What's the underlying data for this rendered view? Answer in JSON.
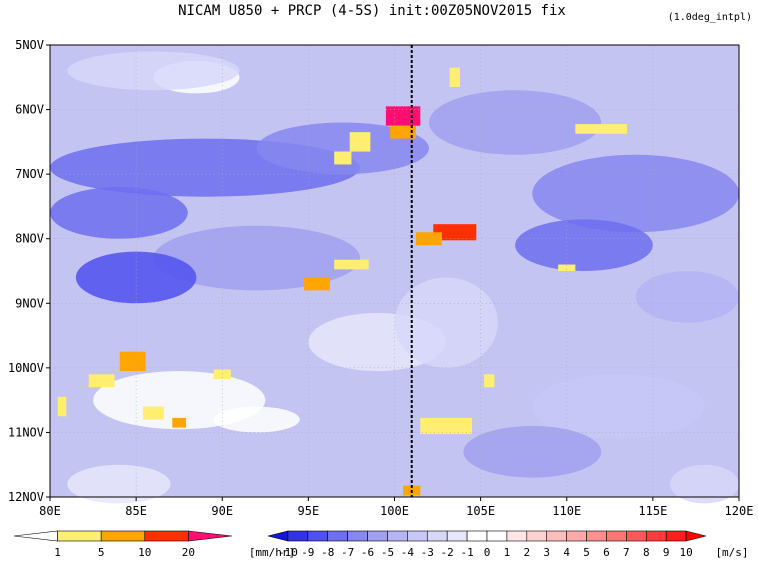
{
  "title": "NICAM  U850 + PRCP (4-5S) init:00Z05NOV2015 fix",
  "note": "(1.0deg_intpl)",
  "chart_data": {
    "type": "heatmap",
    "title": "NICAM  U850 + PRCP (4-5S) init:00Z05NOV2015 fix",
    "xlim": [
      80,
      120
    ],
    "x_ticks": [
      "80E",
      "85E",
      "90E",
      "95E",
      "100E",
      "105E",
      "110E",
      "115E",
      "120E"
    ],
    "y_ticks": [
      "5NOV",
      "6NOV",
      "7NOV",
      "8NOV",
      "9NOV",
      "10NOV",
      "11NOV",
      "12NOV"
    ],
    "grid": true,
    "vertical_marker_lon": 101,
    "u850_blobs": [
      {
        "lon": 88.5,
        "day": 5.5,
        "rx": 2.5,
        "ry": 0.25,
        "u": 1
      },
      {
        "lon": 86,
        "day": 5.4,
        "rx": 5,
        "ry": 0.3,
        "u": -2
      },
      {
        "lon": 89,
        "day": 6.9,
        "rx": 9,
        "ry": 0.45,
        "u": -7
      },
      {
        "lon": 97,
        "day": 6.6,
        "rx": 5,
        "ry": 0.4,
        "u": -6
      },
      {
        "lon": 84,
        "day": 7.6,
        "rx": 4,
        "ry": 0.4,
        "u": -7
      },
      {
        "lon": 92,
        "day": 8.3,
        "rx": 6,
        "ry": 0.5,
        "u": -5
      },
      {
        "lon": 85,
        "day": 8.6,
        "rx": 3.5,
        "ry": 0.4,
        "u": -8
      },
      {
        "lon": 87.5,
        "day": 10.5,
        "rx": 5,
        "ry": 0.45,
        "u": 0
      },
      {
        "lon": 92,
        "day": 10.8,
        "rx": 2.5,
        "ry": 0.2,
        "u": 1
      },
      {
        "lon": 84,
        "day": 11.8,
        "rx": 3,
        "ry": 0.3,
        "u": -1
      },
      {
        "lon": 99,
        "day": 9.6,
        "rx": 4,
        "ry": 0.45,
        "u": -1
      },
      {
        "lon": 103,
        "day": 9.3,
        "rx": 3,
        "ry": 0.7,
        "u": -2
      },
      {
        "lon": 107,
        "day": 6.2,
        "rx": 5,
        "ry": 0.5,
        "u": -5
      },
      {
        "lon": 114,
        "day": 7.3,
        "rx": 6,
        "ry": 0.6,
        "u": -6
      },
      {
        "lon": 111,
        "day": 8.1,
        "rx": 4,
        "ry": 0.4,
        "u": -7
      },
      {
        "lon": 117,
        "day": 8.9,
        "rx": 3,
        "ry": 0.4,
        "u": -4
      },
      {
        "lon": 113,
        "day": 10.6,
        "rx": 5,
        "ry": 0.5,
        "u": -3
      },
      {
        "lon": 108,
        "day": 11.3,
        "rx": 4,
        "ry": 0.4,
        "u": -5
      },
      {
        "lon": 118,
        "day": 11.8,
        "rx": 2,
        "ry": 0.3,
        "u": -2
      }
    ],
    "precip": [
      {
        "lon": 100.5,
        "day": 6.1,
        "w": 2,
        "h": 0.3,
        "v": 22
      },
      {
        "lon": 100.5,
        "day": 6.35,
        "w": 1.5,
        "h": 0.2,
        "v": 8
      },
      {
        "lon": 98,
        "day": 6.5,
        "w": 1.2,
        "h": 0.3,
        "v": 3
      },
      {
        "lon": 97,
        "day": 6.75,
        "w": 1,
        "h": 0.2,
        "v": 2
      },
      {
        "lon": 103.5,
        "day": 5.5,
        "w": 0.6,
        "h": 0.3,
        "v": 2
      },
      {
        "lon": 103.5,
        "day": 7.9,
        "w": 2.5,
        "h": 0.25,
        "v": 10
      },
      {
        "lon": 102,
        "day": 8.0,
        "w": 1.5,
        "h": 0.2,
        "v": 6
      },
      {
        "lon": 97.5,
        "day": 8.4,
        "w": 2,
        "h": 0.15,
        "v": 4
      },
      {
        "lon": 95.5,
        "day": 8.7,
        "w": 1.5,
        "h": 0.2,
        "v": 5
      },
      {
        "lon": 84.8,
        "day": 9.9,
        "w": 1.5,
        "h": 0.3,
        "v": 6
      },
      {
        "lon": 83,
        "day": 10.2,
        "w": 1.5,
        "h": 0.2,
        "v": 3
      },
      {
        "lon": 86,
        "day": 10.7,
        "w": 1.2,
        "h": 0.2,
        "v": 3
      },
      {
        "lon": 87.5,
        "day": 10.85,
        "w": 0.8,
        "h": 0.15,
        "v": 6
      },
      {
        "lon": 90,
        "day": 10.1,
        "w": 1,
        "h": 0.15,
        "v": 2
      },
      {
        "lon": 103,
        "day": 10.9,
        "w": 3,
        "h": 0.25,
        "v": 2
      },
      {
        "lon": 112,
        "day": 6.3,
        "w": 3,
        "h": 0.15,
        "v": 2
      },
      {
        "lon": 110,
        "day": 8.45,
        "w": 1,
        "h": 0.1,
        "v": 2
      },
      {
        "lon": 101,
        "day": 11.9,
        "w": 1,
        "h": 0.15,
        "v": 6
      },
      {
        "lon": 80.7,
        "day": 10.6,
        "w": 0.5,
        "h": 0.3,
        "v": 2
      },
      {
        "lon": 105.5,
        "day": 10.2,
        "w": 0.6,
        "h": 0.2,
        "v": 2
      }
    ]
  },
  "precip_colorbar": {
    "labels": [
      "1",
      "5",
      "10",
      "20"
    ],
    "unit": "[mm/hr]",
    "colors": [
      "#ffffff",
      "#ffee70",
      "#ffa500",
      "#ff3000",
      "#ff1070"
    ]
  },
  "wind_colorbar": {
    "labels": [
      "-10",
      "-9",
      "-8",
      "-7",
      "-6",
      "-5",
      "-4",
      "-3",
      "-2",
      "-1",
      "0",
      "1",
      "2",
      "3",
      "4",
      "5",
      "6",
      "7",
      "8",
      "9",
      "10"
    ],
    "unit": "[m/s]",
    "colors": [
      "#1414dc",
      "#3232e6",
      "#5050f0",
      "#6e6ef0",
      "#8787f0",
      "#a0a0f0",
      "#b4b4f5",
      "#c8c8f8",
      "#d7d7fa",
      "#e6e6fc",
      "#ffffff",
      "#ffffff",
      "#ffe6e6",
      "#ffd2d2",
      "#ffbebe",
      "#ffaaaa",
      "#ff9090",
      "#ff7878",
      "#ff5a5a",
      "#ff3c3c",
      "#ff1e1e",
      "#ff0000"
    ]
  }
}
